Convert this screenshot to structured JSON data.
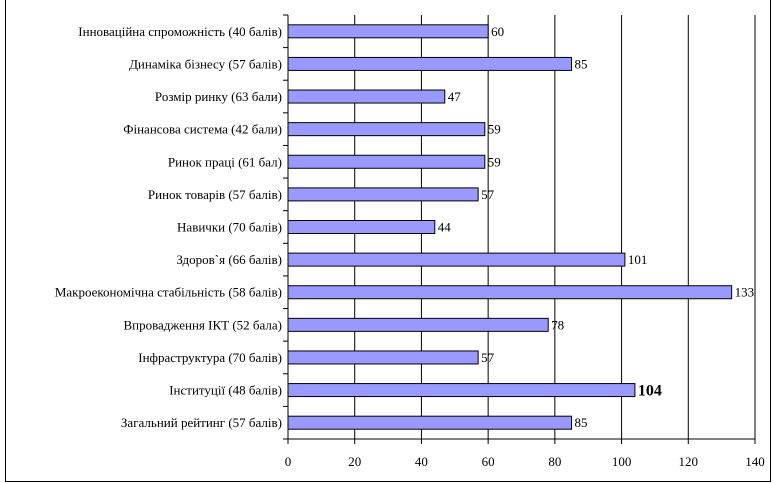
{
  "chart_data": {
    "type": "bar",
    "orientation": "horizontal",
    "categories": [
      "Інноваційна спроможність (40 балів)",
      "Динаміка бізнесу (57 балів)",
      "Розмір ринку (63 бали)",
      "Фінансова система (42 бали)",
      "Ринок праці (61 бал)",
      "Ринок товарів (57 балів)",
      "Навички (70 балів)",
      "Здоров`я (66 балів)",
      "Макроекономічна стабільність (58 балів)",
      "Впровадження ІКТ (52 бала)",
      "Інфраструктура (70 балів)",
      "Інституції (48 балів)",
      "Загальний рейтинг (57 балів)"
    ],
    "values": [
      60,
      85,
      47,
      59,
      59,
      57,
      44,
      101,
      133,
      78,
      57,
      104,
      85
    ],
    "value_labels": [
      "60",
      "85",
      "47",
      "59",
      "59",
      "57",
      "44",
      "101",
      "133",
      "78",
      "57",
      "104",
      "85"
    ],
    "bold_labels": [
      false,
      false,
      false,
      false,
      false,
      false,
      false,
      false,
      false,
      false,
      false,
      true,
      false
    ],
    "xlim": [
      0,
      140
    ],
    "x_ticks": [
      0,
      20,
      40,
      60,
      80,
      100,
      120,
      140
    ],
    "x_tick_labels": [
      "0",
      "20",
      "40",
      "60",
      "80",
      "100",
      "120",
      "140"
    ],
    "grid": "vertical",
    "legend": "none",
    "title": "",
    "xlabel": "",
    "ylabel": "",
    "colors": {
      "bar_fill": "#9999ff",
      "bar_stroke": "#000000",
      "grid": "#000000",
      "axis": "#000000",
      "text": "#000000"
    }
  }
}
